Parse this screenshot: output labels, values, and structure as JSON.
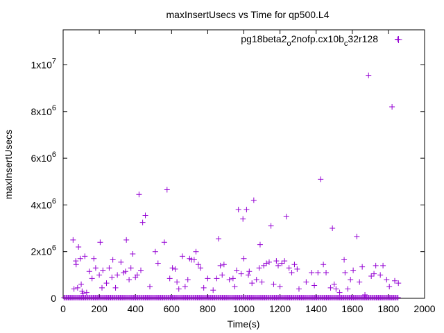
{
  "chart_data": {
    "type": "scatter",
    "title": "maxInsertUsecs vs Time for qp500.L4",
    "xlabel": "Time(s)",
    "ylabel": "maxInsertUsecs",
    "xlim": [
      0,
      2000
    ],
    "ylim": [
      0,
      11500000
    ],
    "x_ticks": [
      0,
      200,
      400,
      600,
      800,
      1000,
      1200,
      1400,
      1600,
      1800,
      2000
    ],
    "y_ticks": [
      0,
      2000000,
      4000000,
      6000000,
      8000000,
      10000000
    ],
    "y_tick_labels": [
      {
        "base": "0",
        "exp": ""
      },
      {
        "base": "2x10",
        "exp": "6"
      },
      {
        "base": "4x10",
        "exp": "6"
      },
      {
        "base": "6x10",
        "exp": "6"
      },
      {
        "base": "8x10",
        "exp": "6"
      },
      {
        "base": "1x10",
        "exp": "7"
      }
    ],
    "grid": false,
    "legend_position": "top-right",
    "marker": "plus",
    "series": [
      {
        "name_parts": [
          "pg18beta2",
          "o",
          "2nofp.cx10b",
          "c",
          "32r128"
        ],
        "color": "#9400d3",
        "baseline": {
          "x_start": 5,
          "x_end": 1855,
          "x_step": 6,
          "y": 30000
        },
        "points": [
          [
            55,
            2500000
          ],
          [
            60,
            400000
          ],
          [
            70,
            1600000
          ],
          [
            72,
            1450000
          ],
          [
            80,
            450000
          ],
          [
            85,
            2200000
          ],
          [
            95,
            1700000
          ],
          [
            100,
            600000
          ],
          [
            105,
            300000
          ],
          [
            110,
            200000
          ],
          [
            120,
            1800000
          ],
          [
            130,
            250000
          ],
          [
            145,
            1150000
          ],
          [
            160,
            850000
          ],
          [
            170,
            1700000
          ],
          [
            180,
            1300000
          ],
          [
            200,
            1000000
          ],
          [
            205,
            2400000
          ],
          [
            215,
            450000
          ],
          [
            220,
            1200000
          ],
          [
            240,
            650000
          ],
          [
            255,
            1300000
          ],
          [
            270,
            900000
          ],
          [
            275,
            1650000
          ],
          [
            290,
            450000
          ],
          [
            300,
            1000000
          ],
          [
            320,
            1550000
          ],
          [
            335,
            1100000
          ],
          [
            345,
            1150000
          ],
          [
            350,
            2500000
          ],
          [
            365,
            800000
          ],
          [
            375,
            1300000
          ],
          [
            385,
            1900000
          ],
          [
            400,
            900000
          ],
          [
            410,
            1000000
          ],
          [
            420,
            4450000
          ],
          [
            430,
            1200000
          ],
          [
            440,
            3250000
          ],
          [
            455,
            3550000
          ],
          [
            480,
            500000
          ],
          [
            510,
            2000000
          ],
          [
            525,
            1500000
          ],
          [
            560,
            2400000
          ],
          [
            575,
            4650000
          ],
          [
            590,
            850000
          ],
          [
            605,
            1300000
          ],
          [
            620,
            1250000
          ],
          [
            630,
            700000
          ],
          [
            640,
            400000
          ],
          [
            660,
            1800000
          ],
          [
            675,
            500000
          ],
          [
            690,
            800000
          ],
          [
            700,
            1700000
          ],
          [
            710,
            1650000
          ],
          [
            725,
            1650000
          ],
          [
            735,
            2000000
          ],
          [
            748,
            1450000
          ],
          [
            760,
            1300000
          ],
          [
            778,
            450000
          ],
          [
            800,
            850000
          ],
          [
            830,
            350000
          ],
          [
            850,
            850000
          ],
          [
            860,
            2550000
          ],
          [
            870,
            1400000
          ],
          [
            880,
            1000000
          ],
          [
            890,
            1450000
          ],
          [
            920,
            800000
          ],
          [
            940,
            850000
          ],
          [
            950,
            500000
          ],
          [
            960,
            1200000
          ],
          [
            970,
            3800000
          ],
          [
            985,
            1050000
          ],
          [
            995,
            3400000
          ],
          [
            1000,
            1700000
          ],
          [
            1015,
            3800000
          ],
          [
            1025,
            1000000
          ],
          [
            1030,
            1150000
          ],
          [
            1045,
            650000
          ],
          [
            1055,
            4200000
          ],
          [
            1070,
            800000
          ],
          [
            1085,
            1300000
          ],
          [
            1090,
            2300000
          ],
          [
            1100,
            700000
          ],
          [
            1110,
            1400000
          ],
          [
            1125,
            1500000
          ],
          [
            1140,
            1550000
          ],
          [
            1150,
            3100000
          ],
          [
            1165,
            600000
          ],
          [
            1180,
            1600000
          ],
          [
            1190,
            1400000
          ],
          [
            1200,
            500000
          ],
          [
            1210,
            1500000
          ],
          [
            1225,
            1600000
          ],
          [
            1235,
            3500000
          ],
          [
            1250,
            1300000
          ],
          [
            1265,
            1100000
          ],
          [
            1280,
            1450000
          ],
          [
            1295,
            1250000
          ],
          [
            1305,
            400000
          ],
          [
            1345,
            700000
          ],
          [
            1375,
            1100000
          ],
          [
            1390,
            550000
          ],
          [
            1410,
            1100000
          ],
          [
            1425,
            5100000
          ],
          [
            1440,
            1450000
          ],
          [
            1455,
            1100000
          ],
          [
            1480,
            450000
          ],
          [
            1490,
            3000000
          ],
          [
            1500,
            600000
          ],
          [
            1510,
            400000
          ],
          [
            1530,
            250000
          ],
          [
            1555,
            1650000
          ],
          [
            1560,
            1100000
          ],
          [
            1575,
            400000
          ],
          [
            1590,
            800000
          ],
          [
            1605,
            1200000
          ],
          [
            1625,
            2650000
          ],
          [
            1640,
            700000
          ],
          [
            1655,
            1350000
          ],
          [
            1670,
            150000
          ],
          [
            1690,
            9550000
          ],
          [
            1705,
            950000
          ],
          [
            1720,
            1050000
          ],
          [
            1730,
            1400000
          ],
          [
            1755,
            1000000
          ],
          [
            1770,
            1400000
          ],
          [
            1790,
            800000
          ],
          [
            1805,
            500000
          ],
          [
            1820,
            8200000
          ],
          [
            1835,
            750000
          ],
          [
            1850,
            11100000
          ],
          [
            1855,
            650000
          ]
        ]
      }
    ]
  }
}
